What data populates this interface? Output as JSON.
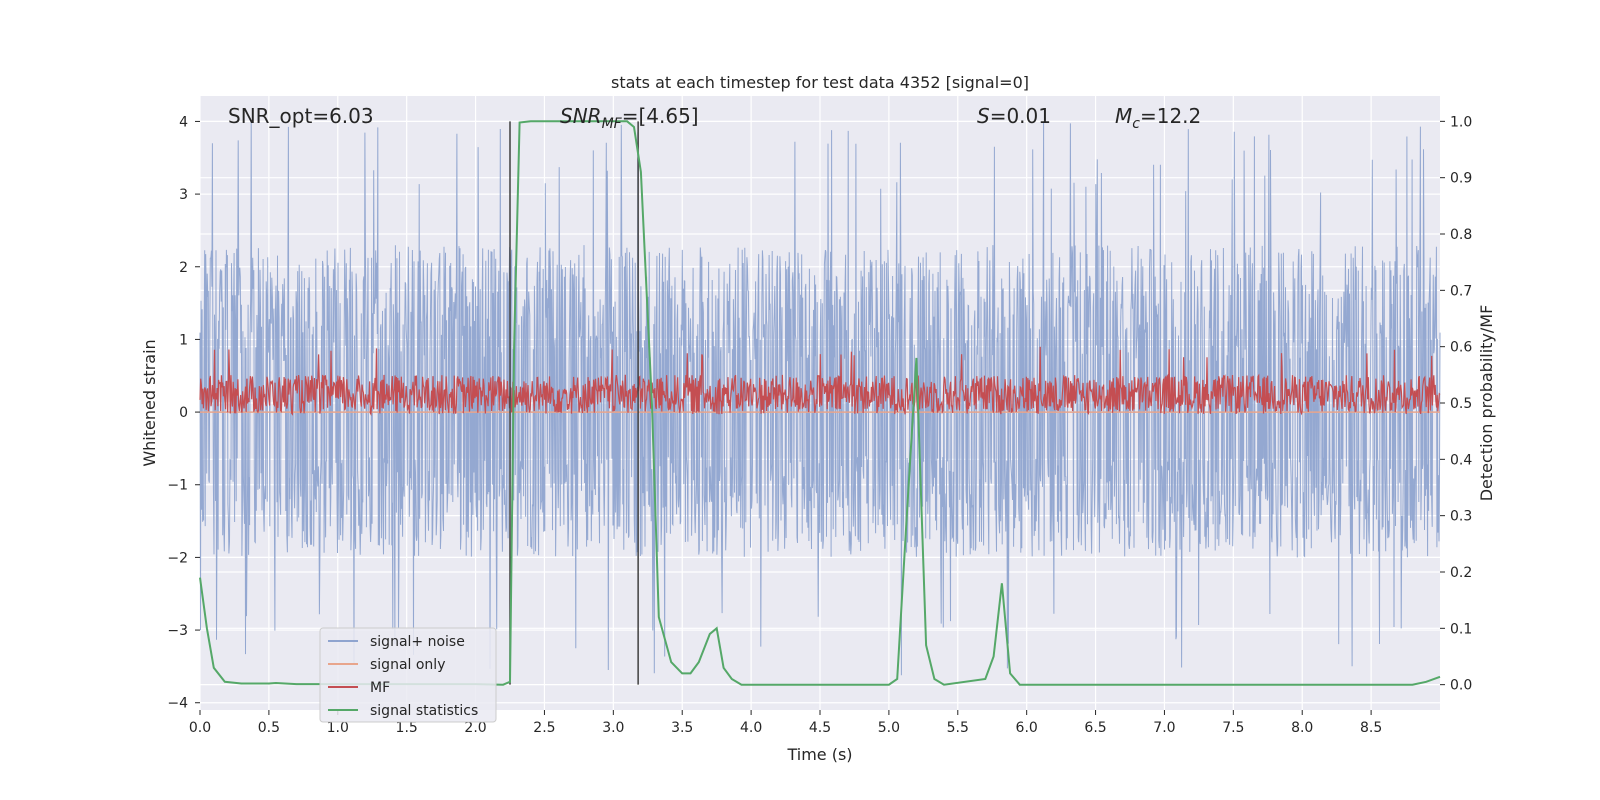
{
  "chart_data": {
    "type": "line",
    "title": "stats at each timestep for test data 4352 [signal=0]",
    "xlabel": "Time (s)",
    "ylabel": "Whitened strain",
    "y2label": "Detection probability/MF",
    "xlim": [
      0,
      9
    ],
    "ylim": [
      -4.1,
      4.35
    ],
    "y2lim": [
      -0.045,
      1.045
    ],
    "xticks": [
      0.0,
      0.5,
      1.0,
      1.5,
      2.0,
      2.5,
      3.0,
      3.5,
      4.0,
      4.5,
      5.0,
      5.5,
      6.0,
      6.5,
      7.0,
      7.5,
      8.0,
      8.5
    ],
    "xtick_labels": [
      "0.0",
      "0.5",
      "1.0",
      "1.5",
      "2.0",
      "2.5",
      "3.0",
      "3.5",
      "4.0",
      "4.5",
      "5.0",
      "5.5",
      "6.0",
      "6.5",
      "7.0",
      "7.5",
      "8.0",
      "8.5"
    ],
    "yticks": [
      4,
      3,
      2,
      1,
      0,
      -1,
      -2,
      -3,
      -4
    ],
    "ytick_labels": [
      "4",
      "3",
      "2",
      "1",
      "0",
      "−1",
      "−2",
      "−3",
      "−4"
    ],
    "y2ticks": [
      1.0,
      0.9,
      0.8,
      0.7,
      0.6,
      0.5,
      0.4,
      0.3,
      0.2,
      0.1,
      0.0
    ],
    "y2tick_labels": [
      "1.0",
      "0.9",
      "0.8",
      "0.7",
      "0.6",
      "0.5",
      "0.4",
      "0.3",
      "0.2",
      "0.1",
      "0.0"
    ],
    "grid": true,
    "legend_position": "lower-left",
    "annotations": {
      "snr_opt": "SNR_opt=6.03",
      "snr_mf_sym": "SNR",
      "snr_mf_sub": "MF",
      "snr_mf_val": "=[4.65]",
      "s_sym": "S",
      "s_val": "=0.01",
      "mc_sym": "M",
      "mc_sub": "c",
      "mc_val": "=12.2"
    },
    "vlines": [
      2.25,
      3.18
    ],
    "series": [
      {
        "name": "signal+ noise",
        "color": "#8fa4cf",
        "kind": "noise",
        "range_typical": [
          -2.0,
          2.3
        ],
        "range_extreme": [
          -3.65,
          4.0
        ]
      },
      {
        "name": "signal only",
        "color": "#e8a58c",
        "kind": "flat",
        "value": 0.0
      },
      {
        "name": "MF",
        "color": "#c44e52",
        "kind": "noise",
        "axis": "right",
        "range_typical": [
          0.48,
          0.55
        ],
        "range_extreme": [
          0.475,
          0.6
        ]
      },
      {
        "name": "signal statistics",
        "color": "#55a868",
        "kind": "line",
        "axis": "right",
        "x": [
          0.0,
          0.05,
          0.1,
          0.18,
          0.3,
          0.5,
          0.55,
          0.7,
          1.0,
          1.5,
          2.0,
          2.2,
          2.25,
          2.28,
          2.32,
          2.4,
          2.8,
          3.0,
          3.1,
          3.15,
          3.2,
          3.28,
          3.33,
          3.42,
          3.5,
          3.56,
          3.62,
          3.7,
          3.75,
          3.8,
          3.86,
          3.93,
          4.0,
          4.5,
          5.0,
          5.06,
          5.13,
          5.2,
          5.27,
          5.33,
          5.4,
          5.7,
          5.76,
          5.82,
          5.88,
          5.95,
          6.5,
          7.0,
          7.5,
          8.0,
          8.5,
          8.8,
          8.9,
          9.0
        ],
        "y": [
          0.19,
          0.1,
          0.03,
          0.005,
          0.002,
          0.002,
          0.003,
          0.001,
          0.001,
          0.001,
          0.001,
          0.0,
          0.005,
          0.6,
          0.998,
          1.0,
          1.0,
          1.0,
          1.0,
          0.99,
          0.91,
          0.5,
          0.12,
          0.04,
          0.02,
          0.02,
          0.04,
          0.09,
          0.1,
          0.03,
          0.01,
          0.0,
          0.0,
          0.0,
          0.0,
          0.01,
          0.3,
          0.58,
          0.07,
          0.01,
          0.0,
          0.01,
          0.05,
          0.18,
          0.02,
          0.0,
          0.0,
          0.0,
          0.0,
          0.0,
          0.0,
          0.0,
          0.005,
          0.014
        ]
      }
    ]
  }
}
